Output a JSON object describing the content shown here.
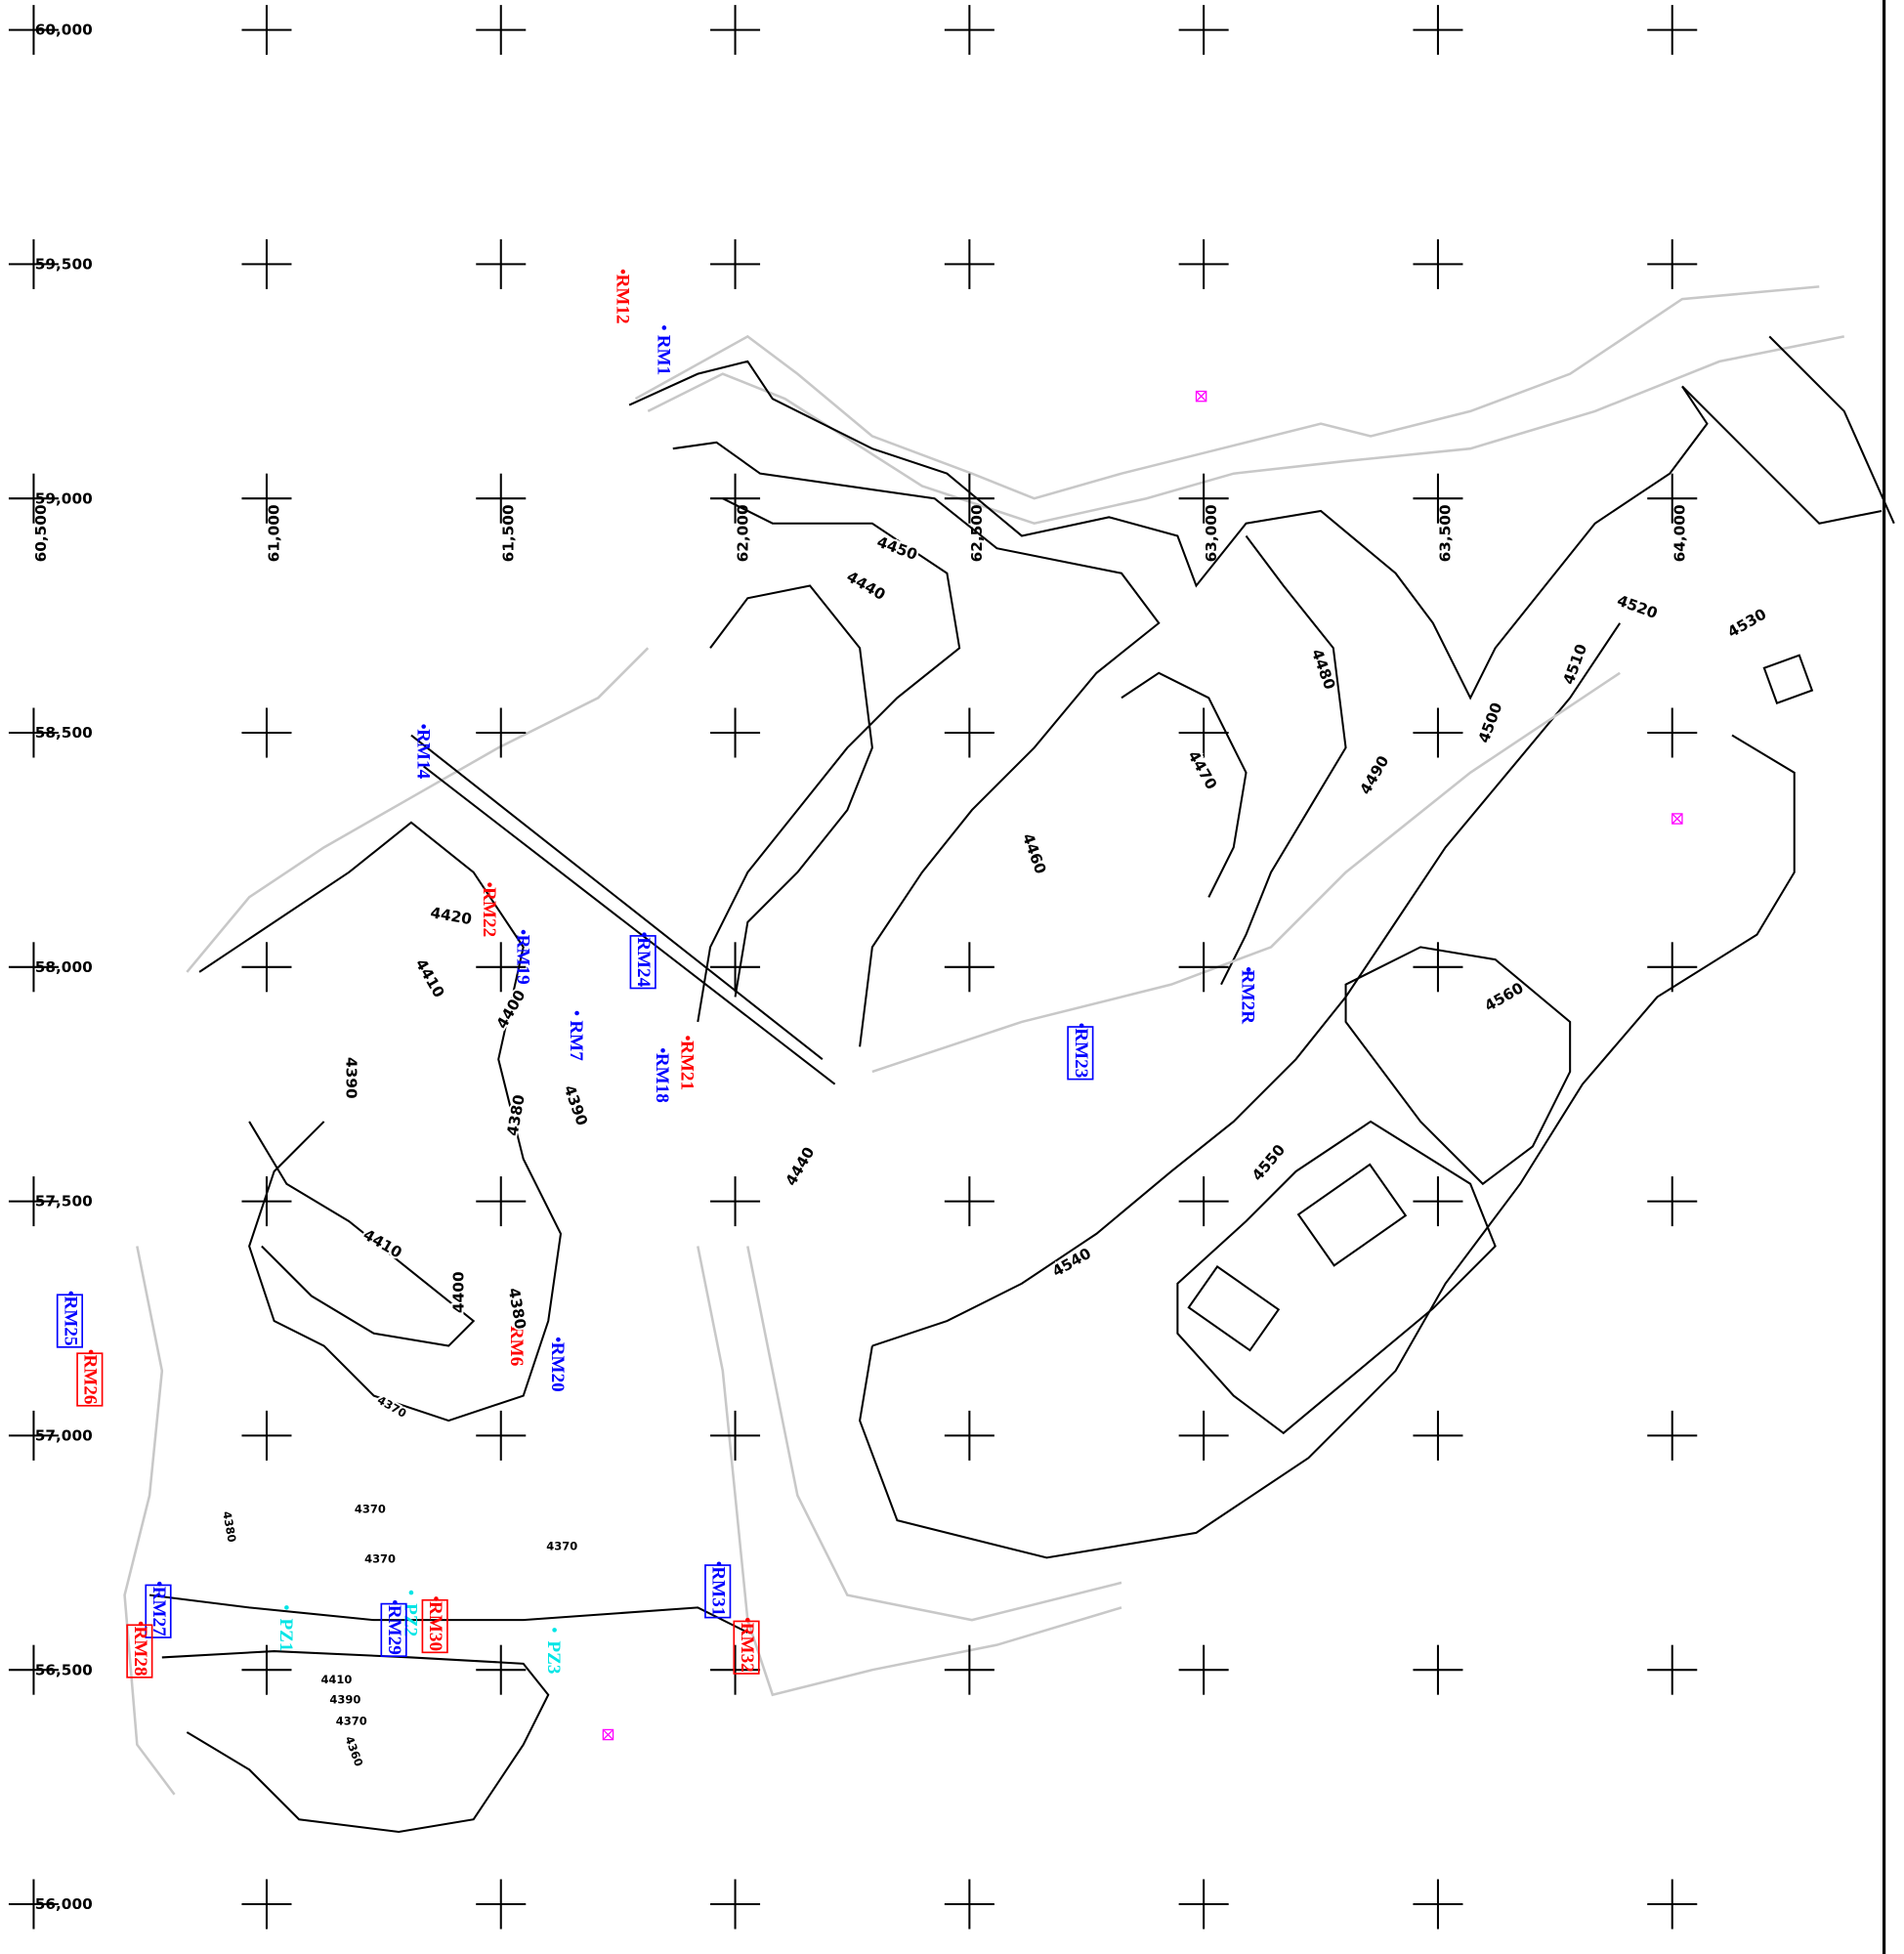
{
  "map": {
    "northings": [
      "60,000",
      "59,500",
      "59,000",
      "58,500",
      "58,000",
      "57,500",
      "57,000",
      "56,500",
      "56,000"
    ],
    "eastings": [
      "60,500",
      "61,000",
      "61,500",
      "62,000",
      "62,500",
      "63,000",
      "63,500",
      "64,000"
    ],
    "stations": [
      {
        "label": "RM12",
        "color": "#ff0000",
        "boxed": false
      },
      {
        "label": "RM1",
        "color": "#0000ff",
        "boxed": false
      },
      {
        "label": "RM14",
        "color": "#0000ff",
        "boxed": false
      },
      {
        "label": "RM22",
        "color": "#ff0000",
        "boxed": false
      },
      {
        "label": "RM19",
        "color": "#0000ff",
        "boxed": false
      },
      {
        "label": "RM24",
        "color": "#0000ff",
        "boxed": true
      },
      {
        "label": "RM7",
        "color": "#0000ff",
        "boxed": false
      },
      {
        "label": "RM21",
        "color": "#ff0000",
        "boxed": false
      },
      {
        "label": "RM18",
        "color": "#0000ff",
        "boxed": false
      },
      {
        "label": "RM2R",
        "color": "#0000ff",
        "boxed": false
      },
      {
        "label": "RM23",
        "color": "#0000ff",
        "boxed": true
      },
      {
        "label": "RM25",
        "color": "#0000ff",
        "boxed": true
      },
      {
        "label": "RM26",
        "color": "#ff0000",
        "boxed": true
      },
      {
        "label": "RM6",
        "color": "#ff0000",
        "boxed": false
      },
      {
        "label": "RM20",
        "color": "#0000ff",
        "boxed": false
      },
      {
        "label": "RM27",
        "color": "#0000ff",
        "boxed": true
      },
      {
        "label": "RM28",
        "color": "#ff0000",
        "boxed": true
      },
      {
        "label": "PZ1",
        "color": "#00e5e5",
        "boxed": false
      },
      {
        "label": "PZ2",
        "color": "#00e5e5",
        "boxed": false
      },
      {
        "label": "RM29",
        "color": "#0000ff",
        "boxed": true
      },
      {
        "label": "RM30",
        "color": "#ff0000",
        "boxed": true
      },
      {
        "label": "PZ3",
        "color": "#00e5e5",
        "boxed": false
      },
      {
        "label": "RM31",
        "color": "#0000ff",
        "boxed": true
      },
      {
        "label": "RM32",
        "color": "#ff0000",
        "boxed": true
      }
    ],
    "contour_labels": [
      "4450",
      "4440",
      "4480",
      "4470",
      "4460",
      "4490",
      "4500",
      "4510",
      "4520",
      "4530",
      "4560",
      "4550",
      "4540",
      "4420",
      "4410",
      "4400",
      "4390",
      "4380",
      "4390",
      "4440",
      "4410",
      "4400",
      "4380",
      "4370",
      "4370",
      "4380",
      "4370",
      "4370",
      "4410",
      "4390",
      "4370",
      "4360"
    ]
  }
}
